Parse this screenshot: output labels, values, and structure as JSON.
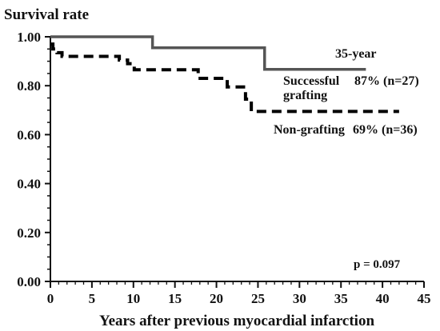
{
  "chart_data": {
    "type": "line",
    "ylabel": "Survival rate",
    "xlabel": "Years after previous myocardial infarction",
    "xlim": [
      0,
      45
    ],
    "ylim": [
      0.0,
      1.0
    ],
    "x_ticks": [
      "0",
      "5",
      "10",
      "15",
      "20",
      "25",
      "30",
      "35",
      "40",
      "45"
    ],
    "y_ticks": [
      "0.00",
      "0.20",
      "0.40",
      "0.60",
      "0.80",
      "1.00"
    ],
    "grid": false,
    "legend": "none",
    "series": [
      {
        "name": "Successful grafting",
        "style": "solid",
        "color": "#555555",
        "points": [
          [
            0,
            1.0
          ],
          [
            12.3,
            1.0
          ],
          [
            12.3,
            0.955
          ],
          [
            25.8,
            0.955
          ],
          [
            25.8,
            0.867
          ],
          [
            38,
            0.867
          ]
        ]
      },
      {
        "name": "Non-grafting",
        "style": "dashed",
        "color": "#000000",
        "points": [
          [
            0,
            0.97
          ],
          [
            0.3,
            0.97
          ],
          [
            0.3,
            0.95
          ],
          [
            0.8,
            0.95
          ],
          [
            0.8,
            0.935
          ],
          [
            1.4,
            0.935
          ],
          [
            1.4,
            0.92
          ],
          [
            8.3,
            0.92
          ],
          [
            8.3,
            0.905
          ],
          [
            9.3,
            0.905
          ],
          [
            9.3,
            0.89
          ],
          [
            10.1,
            0.89
          ],
          [
            10.1,
            0.865
          ],
          [
            17.8,
            0.865
          ],
          [
            17.8,
            0.83
          ],
          [
            21.3,
            0.83
          ],
          [
            21.3,
            0.795
          ],
          [
            23.5,
            0.795
          ],
          [
            23.5,
            0.745
          ],
          [
            24.2,
            0.745
          ],
          [
            24.2,
            0.695
          ],
          [
            42,
            0.695
          ]
        ]
      }
    ],
    "annotations": {
      "duration": "35-year",
      "successful_label_1": "Successful",
      "successful_label_2": "grafting",
      "successful_value": "87% (n=27)",
      "nongrafting_label": "Non-grafting",
      "nongrafting_value": "69% (n=36)",
      "p_value": "p = 0.097"
    }
  }
}
